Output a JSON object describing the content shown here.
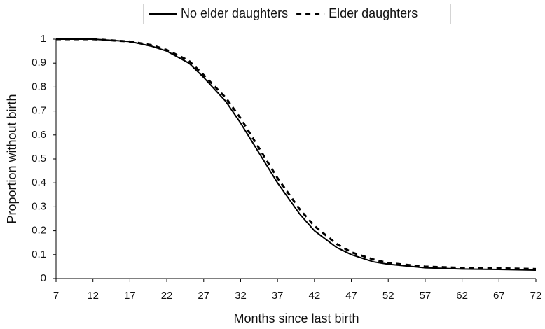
{
  "chart_data": {
    "type": "line",
    "xlabel": "Months since last birth",
    "ylabel": "Proportion without birth",
    "x": [
      7,
      12,
      17,
      20,
      22,
      25,
      27,
      30,
      32,
      35,
      37,
      40,
      42,
      45,
      47,
      50,
      52,
      57,
      62,
      67,
      72
    ],
    "series": [
      {
        "name": "No elder daughters",
        "color": "#000000",
        "dash": "solid",
        "values": [
          1,
          1,
          0.99,
          0.97,
          0.95,
          0.9,
          0.84,
          0.74,
          0.65,
          0.5,
          0.4,
          0.27,
          0.2,
          0.13,
          0.1,
          0.07,
          0.06,
          0.045,
          0.04,
          0.038,
          0.035
        ]
      },
      {
        "name": "Elder daughters",
        "color": "#000000",
        "dash": "dashed",
        "values": [
          1,
          1,
          0.99,
          0.975,
          0.955,
          0.91,
          0.85,
          0.755,
          0.67,
          0.52,
          0.42,
          0.29,
          0.22,
          0.145,
          0.11,
          0.08,
          0.065,
          0.05,
          0.045,
          0.043,
          0.04
        ]
      }
    ],
    "xlim": [
      7,
      72
    ],
    "xticks": [
      7,
      12,
      17,
      22,
      27,
      32,
      37,
      42,
      47,
      52,
      57,
      62,
      67,
      72
    ],
    "ylim": [
      0,
      1
    ],
    "yticks": [
      0,
      0.1,
      0.2,
      0.3,
      0.4,
      0.5,
      0.6,
      0.7,
      0.8,
      0.9,
      1
    ],
    "grid": false,
    "legend": "top"
  }
}
